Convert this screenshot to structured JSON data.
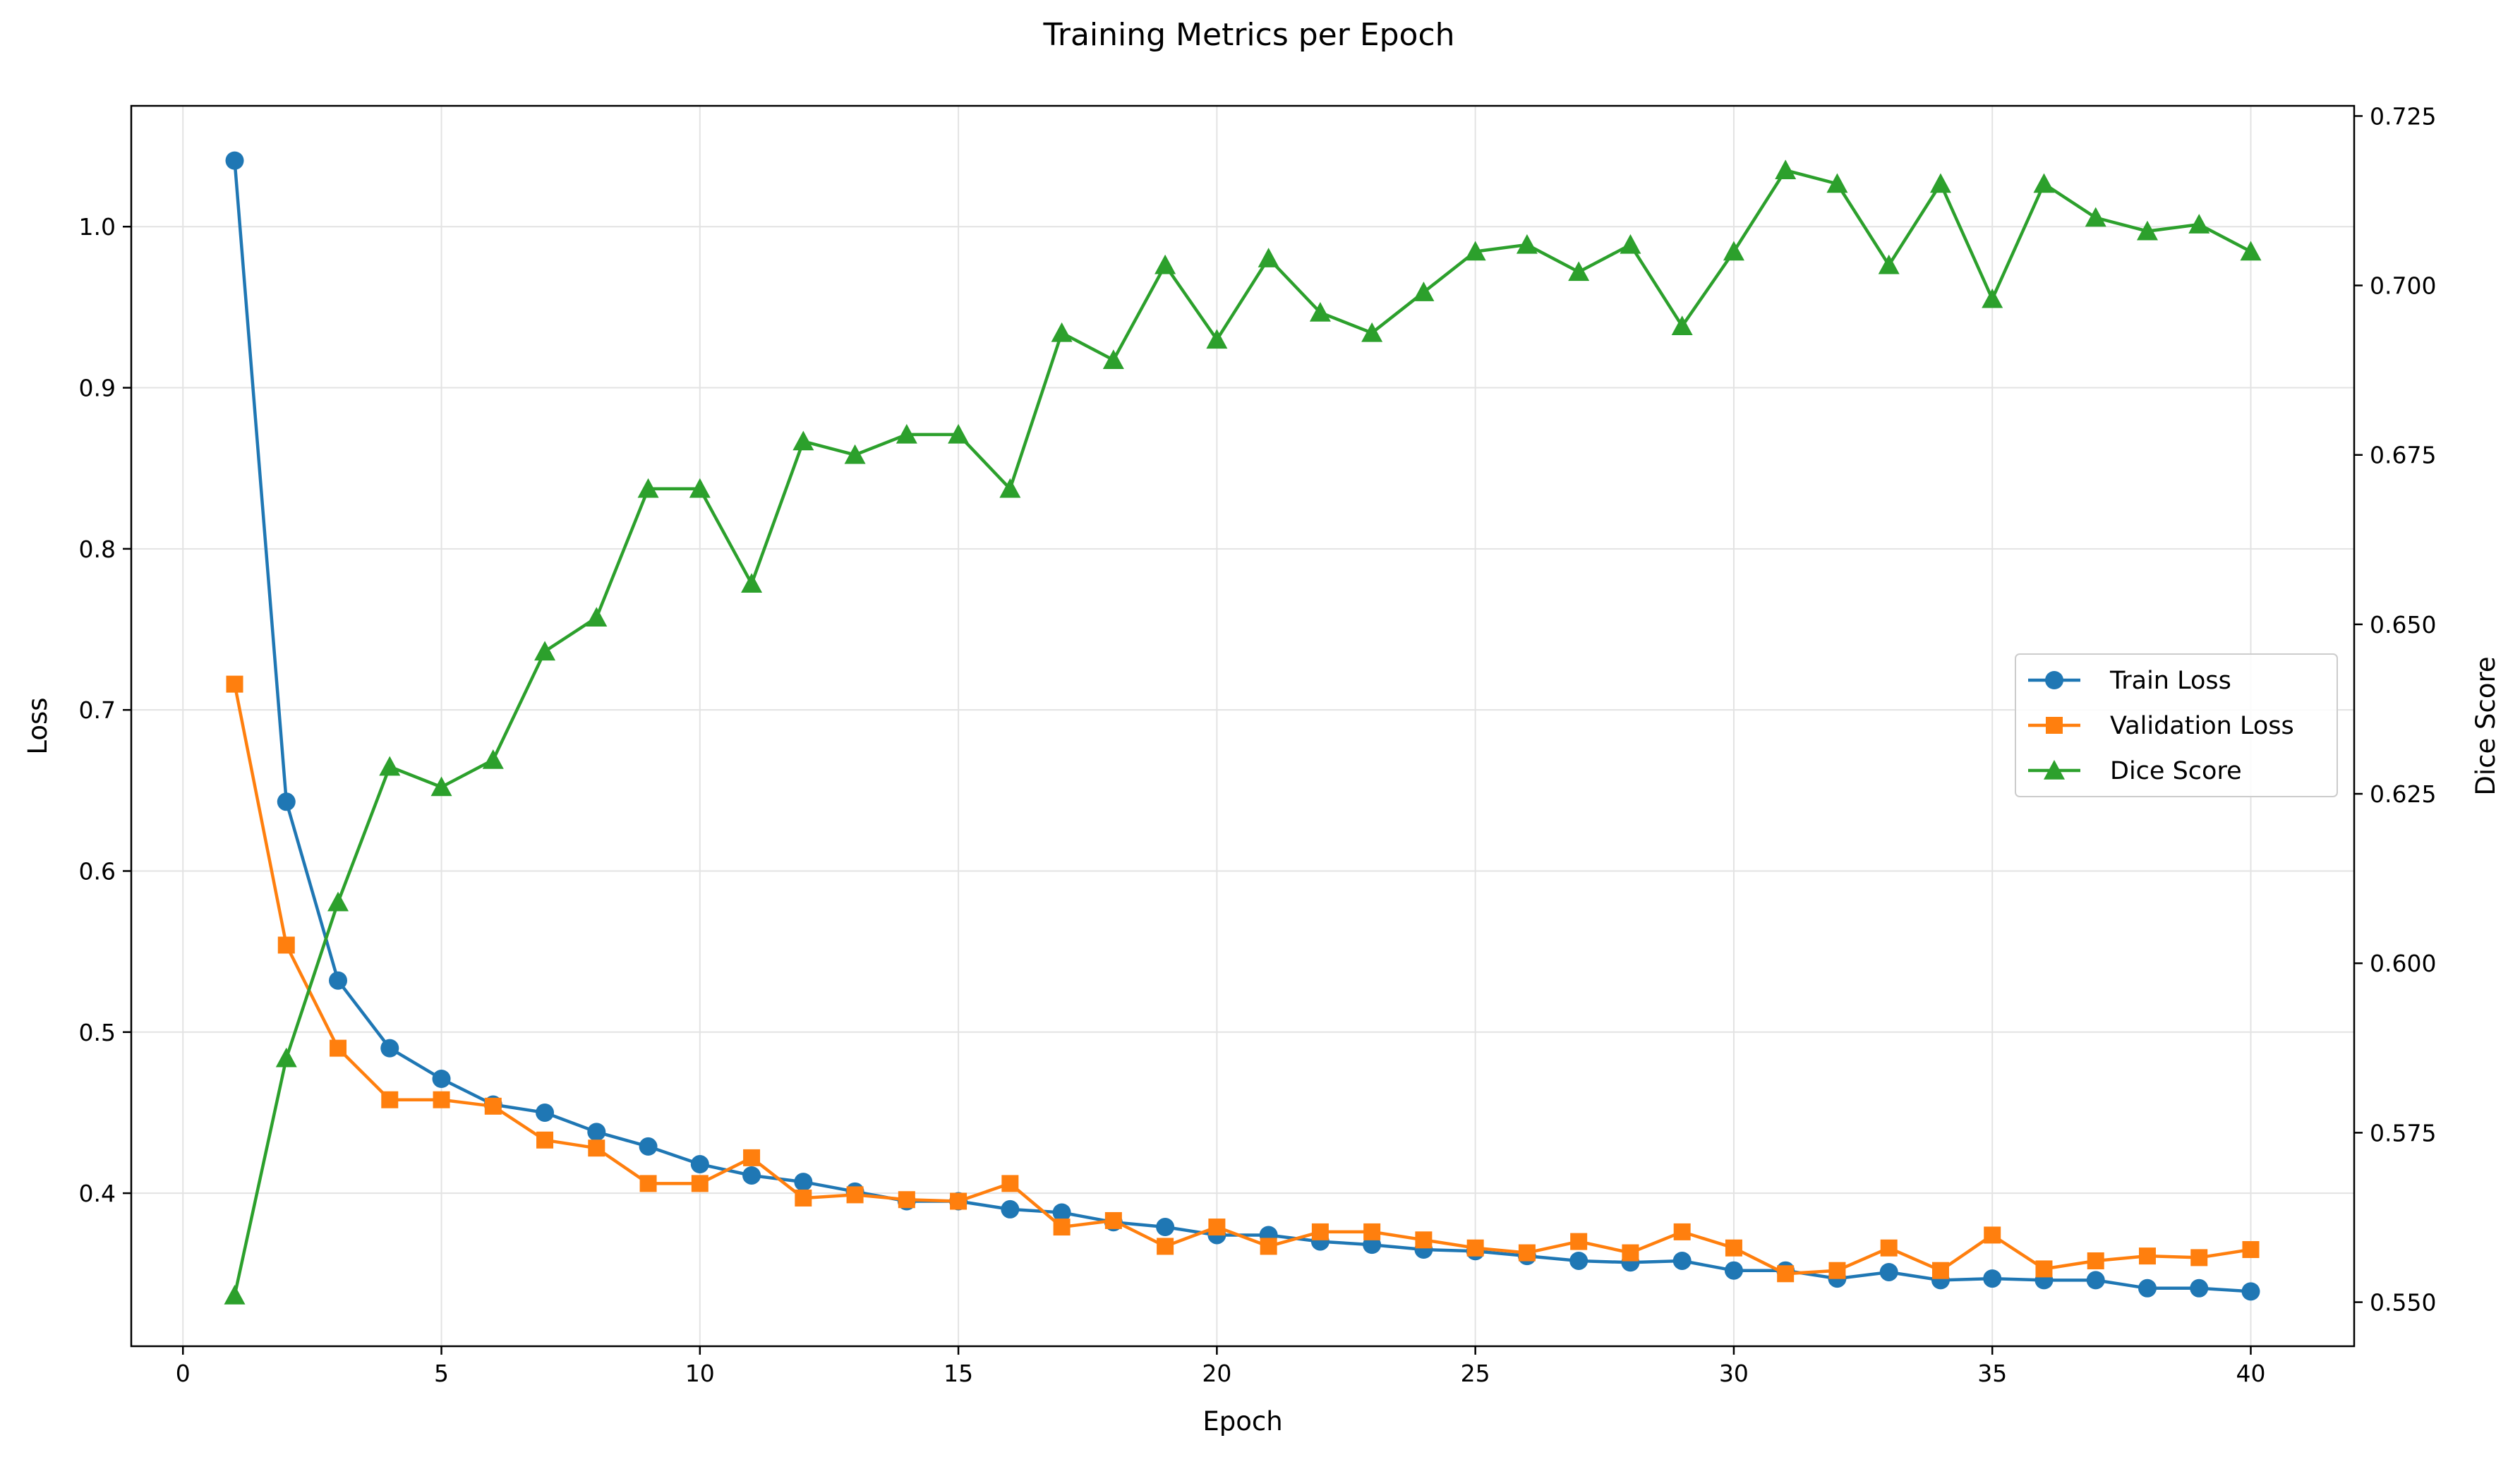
{
  "chart_data": {
    "type": "line",
    "title": "Training Metrics per Epoch",
    "xlabel": "Epoch",
    "ylabel": "Loss",
    "y2label": "Dice Score",
    "xlim": [
      -1,
      42
    ],
    "ylim": [
      0.305,
      1.075
    ],
    "y2lim": [
      0.5435,
      0.7265
    ],
    "grid": true,
    "legend_position": "right",
    "x_ticks": [
      "0",
      "5",
      "10",
      "15",
      "20",
      "25",
      "30",
      "35",
      "40"
    ],
    "y_ticks": [
      "0.4",
      "0.5",
      "0.6",
      "0.7",
      "0.8",
      "0.9",
      "1.0"
    ],
    "y2_ticks": [
      "0.550",
      "0.575",
      "0.600",
      "0.625",
      "0.650",
      "0.675",
      "0.700",
      "0.725"
    ],
    "x": [
      1,
      2,
      3,
      4,
      5,
      6,
      7,
      8,
      9,
      10,
      11,
      12,
      13,
      14,
      15,
      16,
      17,
      18,
      19,
      20,
      21,
      22,
      23,
      24,
      25,
      26,
      27,
      28,
      29,
      30,
      31,
      32,
      33,
      34,
      35,
      36,
      37,
      38,
      39,
      40
    ],
    "series": [
      {
        "name": "Train Loss",
        "axis": "left",
        "color": "#1f77b4",
        "marker": "circle",
        "values": [
          1.041,
          0.643,
          0.532,
          0.49,
          0.471,
          0.455,
          0.45,
          0.438,
          0.429,
          0.418,
          0.411,
          0.407,
          0.401,
          0.395,
          0.395,
          0.39,
          0.388,
          0.382,
          0.379,
          0.374,
          0.374,
          0.37,
          0.368,
          0.365,
          0.364,
          0.361,
          0.358,
          0.357,
          0.358,
          0.352,
          0.352,
          0.347,
          0.351,
          0.346,
          0.347,
          0.346,
          0.346,
          0.341,
          0.341,
          0.339
        ]
      },
      {
        "name": "Validation Loss",
        "axis": "left",
        "color": "#ff7f0e",
        "marker": "square",
        "values": [
          0.716,
          0.554,
          0.49,
          0.458,
          0.458,
          0.454,
          0.433,
          0.428,
          0.406,
          0.406,
          0.422,
          0.397,
          0.399,
          0.396,
          0.395,
          0.406,
          0.379,
          0.383,
          0.367,
          0.379,
          0.367,
          0.376,
          0.376,
          0.371,
          0.366,
          0.363,
          0.37,
          0.363,
          0.376,
          0.366,
          0.35,
          0.352,
          0.366,
          0.352,
          0.374,
          0.353,
          0.358,
          0.361,
          0.36,
          0.365
        ]
      },
      {
        "name": "Dice Score",
        "axis": "right",
        "color": "#2ca02c",
        "marker": "triangle",
        "values": [
          0.551,
          0.586,
          0.609,
          0.629,
          0.626,
          0.63,
          0.646,
          0.651,
          0.67,
          0.67,
          0.656,
          0.677,
          0.675,
          0.678,
          0.678,
          0.67,
          0.693,
          0.689,
          0.703,
          0.692,
          0.704,
          0.696,
          0.693,
          0.699,
          0.705,
          0.706,
          0.702,
          0.706,
          0.694,
          0.705,
          0.717,
          0.715,
          0.703,
          0.715,
          0.698,
          0.715,
          0.71,
          0.708,
          0.709,
          0.705
        ]
      }
    ]
  }
}
